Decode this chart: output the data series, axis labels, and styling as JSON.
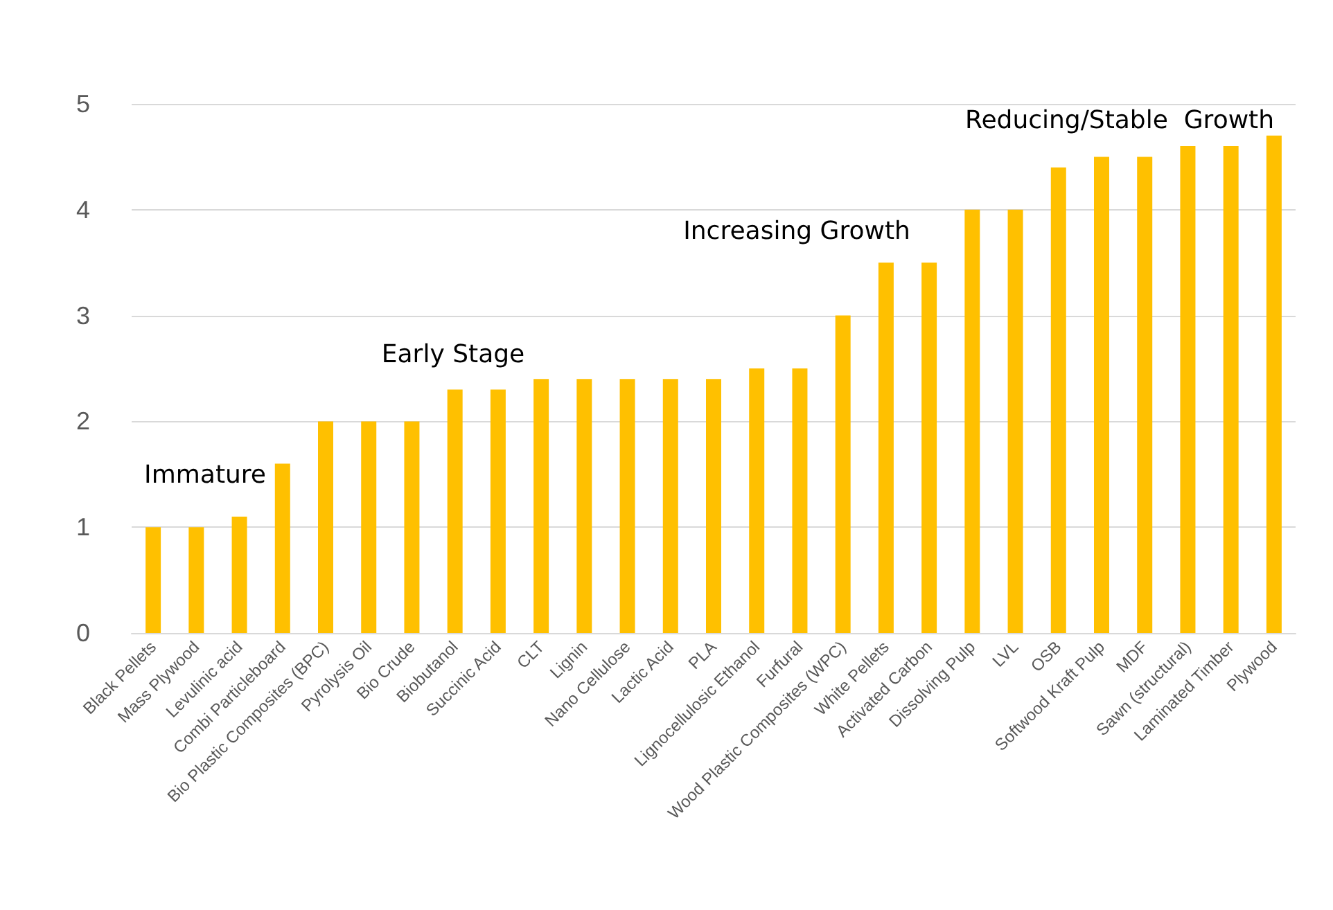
{
  "chart_data": {
    "type": "bar",
    "categories": [
      "Black Pellets",
      "Mass Plywood",
      "Levulinic acid",
      "Combi Particleboard",
      "Bio Plastic Composites (BPC)",
      "Pyrolysis Oil",
      "Bio Crude",
      "Biobutanol",
      "Succinic Acid",
      "CLT",
      "Lignin",
      "Nano Cellulose",
      "Lactic Acid",
      "PLA",
      "Lignocellulosic Ethanol",
      "Furfural",
      "Wood Plastic Composites (WPC)",
      "White Pellets",
      "Activated Carbon",
      "Dissolving Pulp",
      "LVL",
      "OSB",
      "Softwood Kraft Pulp",
      "MDF",
      "Sawn (structural)",
      "Laminated Timber",
      "Plywood"
    ],
    "values": [
      1,
      1,
      1.1,
      1.6,
      2,
      2,
      2,
      2.3,
      2.3,
      2.4,
      2.4,
      2.4,
      2.4,
      2.4,
      2.5,
      2.5,
      3,
      3.5,
      3.5,
      4,
      4,
      4.4,
      4.5,
      4.5,
      4.6,
      4.6,
      4.7
    ],
    "color": "#ffc000",
    "ylim": [
      0,
      5
    ],
    "yticks": [
      0,
      1,
      2,
      3,
      4,
      5
    ],
    "grid": "y",
    "annotations": [
      "Immature",
      "Early Stage",
      "Increasing Growth",
      "Reducing/Stable  Growth"
    ]
  }
}
